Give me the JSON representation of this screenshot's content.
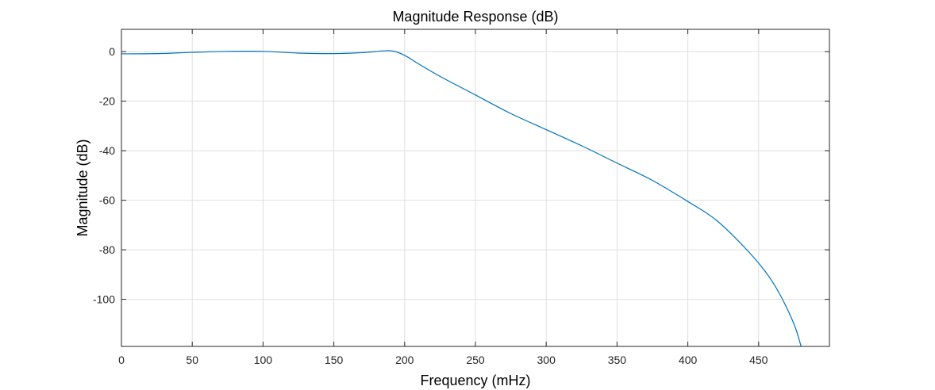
{
  "chart_data": {
    "type": "line",
    "title": "Magnitude Response (dB)",
    "xlabel": "Frequency (mHz)",
    "ylabel": "Magnitude (dB)",
    "xlim": [
      0,
      500
    ],
    "ylim": [
      -119,
      9
    ],
    "xticks": [
      0,
      50,
      100,
      150,
      200,
      250,
      300,
      350,
      400,
      450
    ],
    "yticks": [
      0,
      -20,
      -40,
      -60,
      -80,
      -100
    ],
    "grid": true,
    "series": [
      {
        "color": "#0072bd",
        "x": [
          0,
          25,
          50,
          75,
          100,
          125,
          150,
          170,
          185,
          192,
          200,
          210,
          225,
          250,
          275,
          300,
          325,
          350,
          375,
          400,
          420,
          440,
          455,
          465,
          475,
          480
        ],
        "y": [
          -0.9,
          -0.8,
          -0.3,
          0.1,
          0.1,
          -0.6,
          -0.8,
          -0.4,
          0.3,
          0.2,
          -1.5,
          -5,
          -10,
          -17.5,
          -25,
          -31.5,
          -38,
          -45,
          -52,
          -60.5,
          -68,
          -79,
          -89,
          -98,
          -110,
          -119
        ]
      }
    ]
  }
}
